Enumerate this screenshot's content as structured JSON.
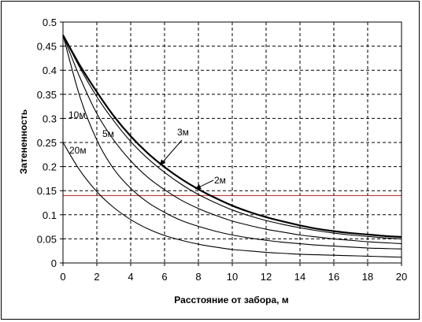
{
  "chart_data": {
    "type": "line",
    "title": "",
    "xlabel": "Расстояние от забора, м",
    "ylabel": "Затененность",
    "xlim": [
      0,
      20
    ],
    "ylim": [
      0,
      0.5
    ],
    "x_ticks": [
      "0",
      "2",
      "4",
      "6",
      "8",
      "10",
      "12",
      "14",
      "16",
      "18",
      "20"
    ],
    "y_ticks": [
      "0",
      "0.05",
      "0.1",
      "0.15",
      "0.2",
      "0.25",
      "0.3",
      "0.35",
      "0.4",
      "0.45",
      "0.5"
    ],
    "grid": true,
    "legend": "none",
    "reference_line": {
      "y": 0.14,
      "color": "#b02020"
    },
    "series": [
      {
        "name": "2м",
        "color": "#000000",
        "x": [
          0,
          1,
          2,
          3,
          4,
          5,
          6,
          7,
          8,
          9,
          10,
          11,
          12,
          13,
          14,
          15,
          16,
          17,
          18,
          19,
          20
        ],
        "y": [
          0.473,
          0.41,
          0.355,
          0.305,
          0.263,
          0.228,
          0.199,
          0.174,
          0.153,
          0.135,
          0.119,
          0.106,
          0.095,
          0.086,
          0.078,
          0.071,
          0.066,
          0.062,
          0.059,
          0.056,
          0.054
        ]
      },
      {
        "name": "3м",
        "color": "#000000",
        "x": [
          0,
          1,
          2,
          3,
          4,
          5,
          6,
          7,
          8,
          9,
          10,
          11,
          12,
          13,
          14,
          15,
          16,
          17,
          18,
          19,
          20
        ],
        "y": [
          0.473,
          0.405,
          0.345,
          0.295,
          0.252,
          0.217,
          0.188,
          0.163,
          0.142,
          0.125,
          0.11,
          0.098,
          0.088,
          0.08,
          0.073,
          0.067,
          0.062,
          0.058,
          0.055,
          0.052,
          0.05
        ]
      },
      {
        "name": "5м",
        "color": "#000000",
        "x": [
          0,
          1,
          2,
          3,
          4,
          5,
          6,
          7,
          8,
          9,
          10,
          11,
          12,
          13,
          14,
          15,
          16,
          17,
          18,
          19,
          20
        ],
        "y": [
          0.473,
          0.385,
          0.31,
          0.255,
          0.212,
          0.178,
          0.152,
          0.13,
          0.113,
          0.099,
          0.087,
          0.078,
          0.07,
          0.064,
          0.058,
          0.054,
          0.05,
          0.047,
          0.044,
          0.042,
          0.04
        ]
      },
      {
        "name": "10м",
        "color": "#000000",
        "x": [
          0,
          1,
          2,
          3,
          4,
          5,
          6,
          7,
          8,
          9,
          10,
          11,
          12,
          13,
          14,
          15,
          16,
          17,
          18,
          19,
          20
        ],
        "y": [
          0.473,
          0.345,
          0.255,
          0.195,
          0.155,
          0.126,
          0.105,
          0.088,
          0.076,
          0.066,
          0.058,
          0.052,
          0.047,
          0.043,
          0.04,
          0.037,
          0.035,
          0.033,
          0.031,
          0.03,
          0.029
        ]
      },
      {
        "name": "20м",
        "color": "#000000",
        "x": [
          0,
          1,
          2,
          3,
          4,
          5,
          6,
          7,
          8,
          9,
          10,
          11,
          12,
          13,
          14,
          15,
          16,
          17,
          18,
          19,
          20
        ],
        "y": [
          0.25,
          0.192,
          0.148,
          0.115,
          0.09,
          0.071,
          0.057,
          0.047,
          0.039,
          0.033,
          0.028,
          0.025,
          0.022,
          0.02,
          0.018,
          0.017,
          0.016,
          0.015,
          0.014,
          0.013,
          0.012
        ]
      }
    ],
    "annotations": [
      {
        "text": "10м",
        "series": "10м"
      },
      {
        "text": "5м",
        "series": "5м"
      },
      {
        "text": "3м",
        "series": "3м"
      },
      {
        "text": "2м",
        "series": "2м"
      },
      {
        "text": "20м",
        "series": "20м"
      }
    ]
  }
}
